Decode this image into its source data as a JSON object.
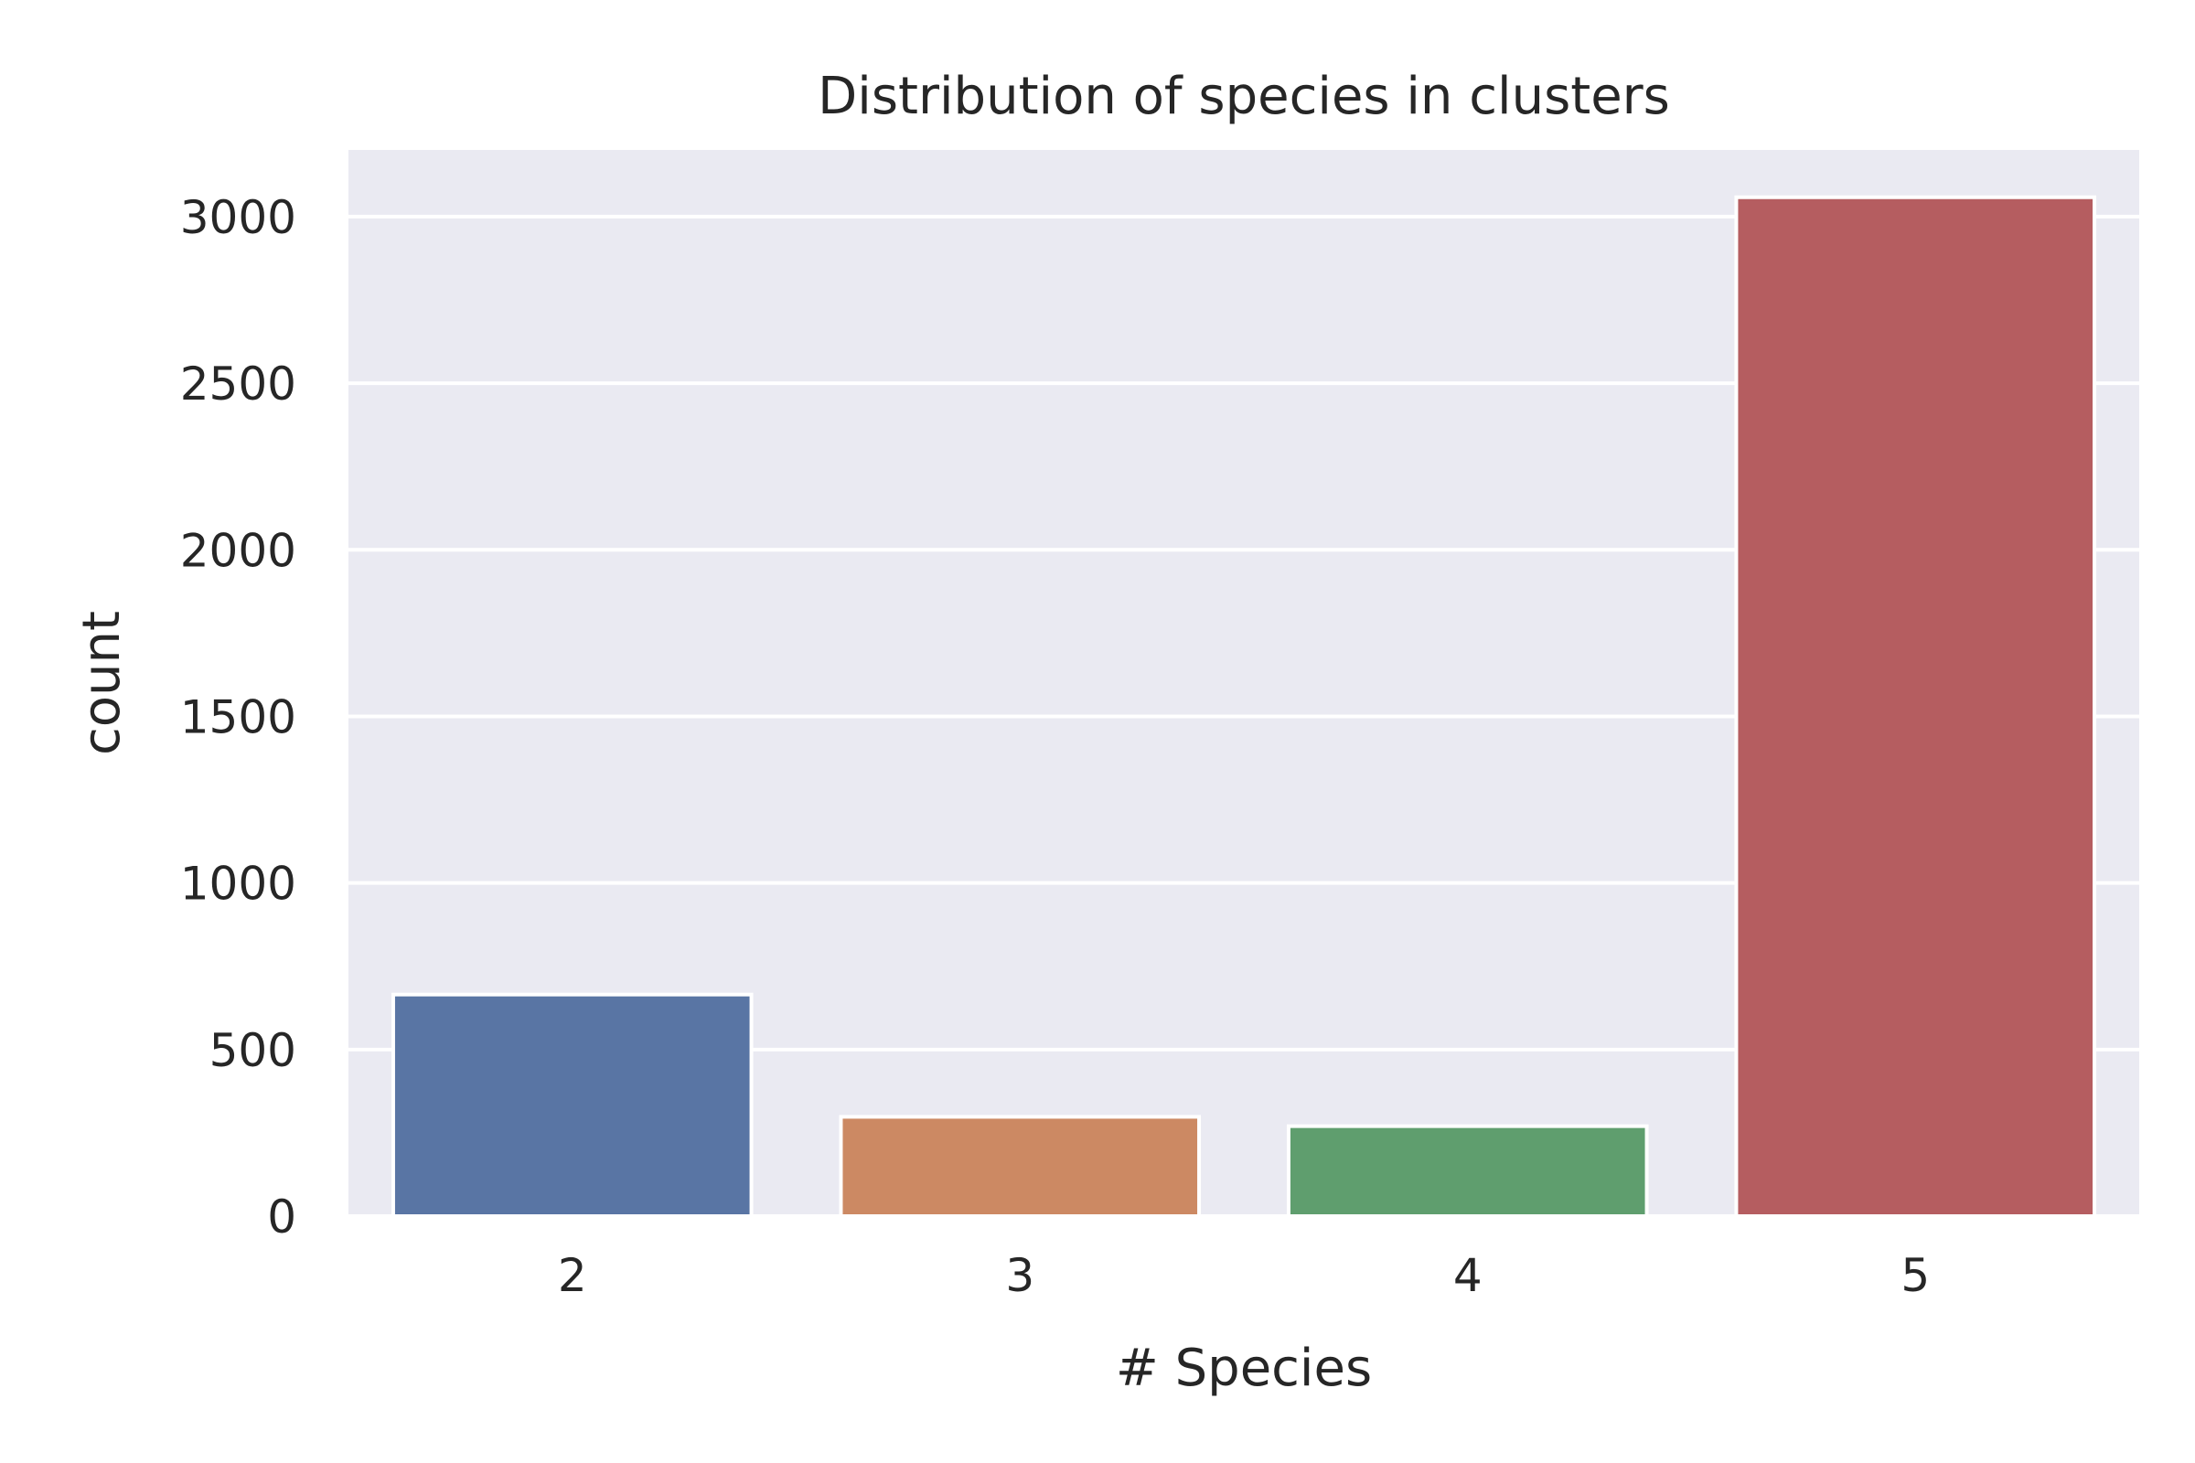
{
  "chart_data": {
    "type": "bar",
    "title": "Distribution of species in clusters",
    "xlabel": "# Species",
    "ylabel": "count",
    "categories": [
      "2",
      "3",
      "4",
      "5"
    ],
    "values": [
      665,
      298,
      270,
      3058
    ],
    "ylim": [
      0,
      3200
    ],
    "yticks": [
      0,
      500,
      1000,
      1500,
      2000,
      2500,
      3000
    ],
    "bar_colors": [
      "#5975a4",
      "#cc8963",
      "#5f9e6e",
      "#b55d60"
    ],
    "grid": true,
    "grid_color": "#ffffff",
    "plot_background": "#eaeaf2",
    "legend": "none"
  }
}
